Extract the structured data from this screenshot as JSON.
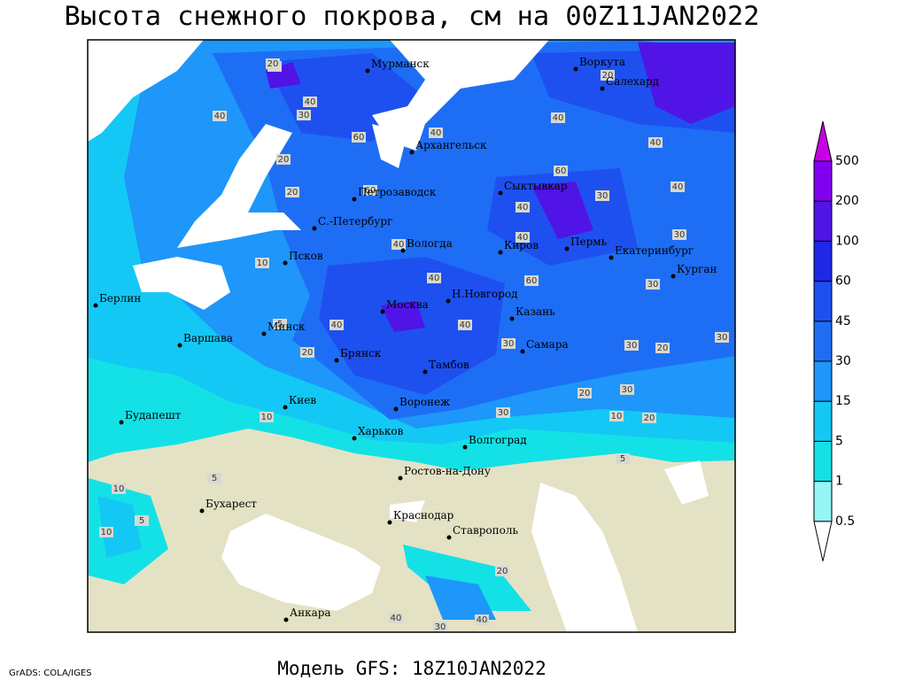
{
  "header": {
    "title": "Высота снежного покрова, см на 00Z11JAN2022"
  },
  "footer": {
    "model": "Модель GFS: 18Z10JAN2022",
    "credit": "GrADS: COLA/IGES"
  },
  "legend": {
    "levels": [
      0.5,
      1,
      5,
      15,
      30,
      45,
      60,
      100,
      200,
      500
    ],
    "colors": [
      "#ffffff",
      "#96f5f5",
      "#14e1e6",
      "#14c8f5",
      "#1e96fa",
      "#1e6ef5",
      "#1e50f0",
      "#1e28e6",
      "#5014e6",
      "#8200f0",
      "#c800e6"
    ]
  },
  "cities": [
    "Мурманск",
    "Воркута",
    "Салехард",
    "Архангельск",
    "Петрозаводск",
    "Сыктывкар",
    "С.-Петербург",
    "Вологда",
    "Киров",
    "Пермь",
    "Екатеринбург",
    "Курган",
    "Псков",
    "Берлин",
    "Н.Новгород",
    "Казань",
    "Москва",
    "Минск",
    "Варшава",
    "Самара",
    "Брянск",
    "Тамбов",
    "Киев",
    "Воронеж",
    "Будапешт",
    "Харьков",
    "Волгоград",
    "Ростов-на-Дону",
    "Бухарест",
    "Краснодар",
    "Ставрополь",
    "Анкара"
  ],
  "contour_labels": [
    60,
    40,
    40,
    30,
    60,
    40,
    20,
    40,
    40,
    60,
    30,
    40,
    20,
    60,
    40,
    40,
    30,
    40,
    10,
    40,
    60,
    30,
    5,
    40,
    40,
    30,
    30,
    20,
    30,
    20,
    20,
    30,
    10,
    10,
    20,
    30,
    5,
    5,
    10,
    5,
    10,
    20,
    40,
    30,
    40,
    20,
    20
  ]
}
